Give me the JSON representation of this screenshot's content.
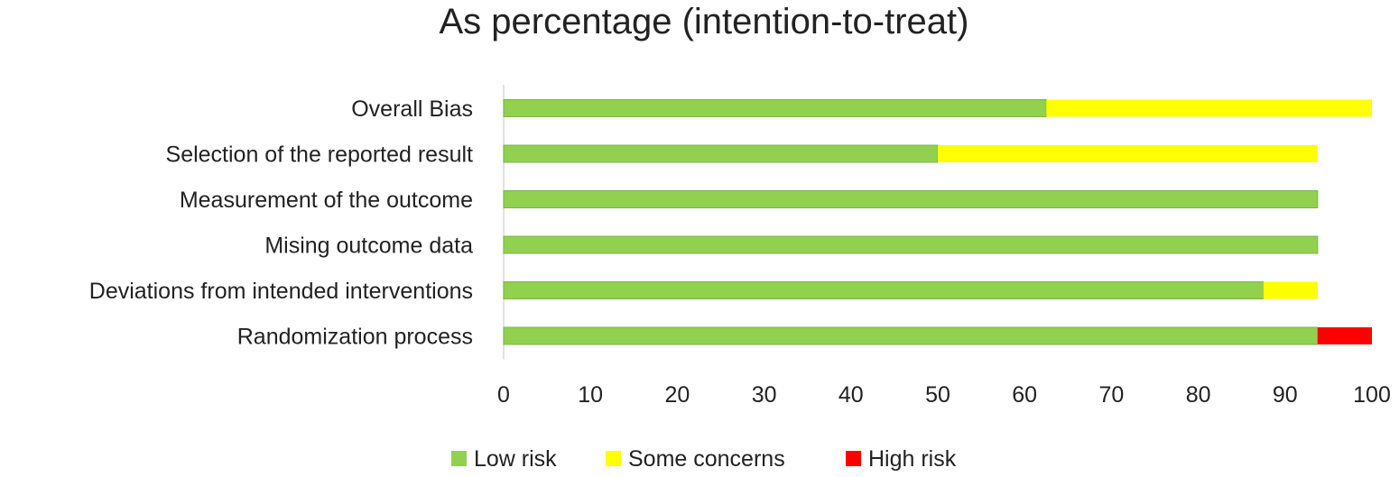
{
  "chart_data": {
    "type": "bar",
    "orientation": "horizontal",
    "stacked": true,
    "title": "As percentage (intention-to-treat)",
    "xlabel": "",
    "ylabel": "",
    "xlim": [
      0,
      100
    ],
    "x_ticks": [
      0,
      10,
      20,
      30,
      40,
      50,
      60,
      70,
      80,
      90,
      100
    ],
    "grid": false,
    "legend_position": "bottom",
    "categories": [
      "Overall Bias",
      "Selection of the reported result",
      "Measurement of the outcome",
      "Mising outcome data",
      "Deviations from intended interventions",
      "Randomization process"
    ],
    "series": [
      {
        "name": "Low risk",
        "color": "#92d050",
        "values": [
          62.5,
          50,
          93.75,
          93.75,
          87.5,
          93.75
        ]
      },
      {
        "name": "Some concerns",
        "color": "#ffff00",
        "values": [
          37.5,
          43.75,
          0,
          0,
          6.25,
          0
        ]
      },
      {
        "name": "High risk",
        "color": "#ff0000",
        "values": [
          0,
          0,
          0,
          0,
          0,
          6.25
        ]
      }
    ]
  }
}
